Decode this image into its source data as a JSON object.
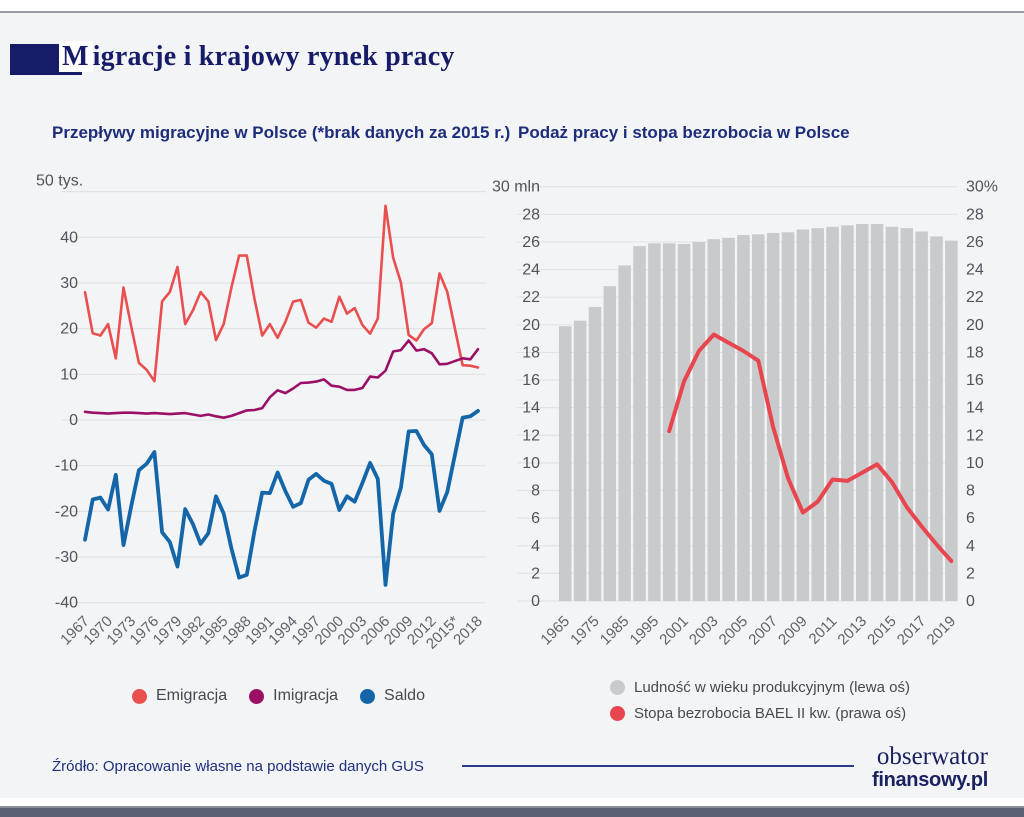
{
  "page": {
    "title": "Migracje i krajowy rynek pracy",
    "source": "Źródło: Opracowanie własne na podstawie danych GUS",
    "logo_line1": "obserwator",
    "logo_line2": "finansowy.pl",
    "background": "#f3f4f6",
    "accent_navy": "#171c69"
  },
  "chart_data": [
    {
      "type": "line",
      "title": "Przepływy migracyjne w Polsce (*brak danych za 2015 r.)",
      "unit": "tys.",
      "y_ticks": [
        "50 tys.",
        "40",
        "30",
        "20",
        "10",
        "0",
        "-10",
        "-20",
        "-30",
        "-40"
      ],
      "ylim": [
        -40,
        50
      ],
      "grid": true,
      "legend_position": "bottom",
      "x_tick_labels": [
        "1967",
        "1970",
        "1973",
        "1976",
        "1979",
        "1982",
        "1985",
        "1988",
        "1991",
        "1994",
        "1997",
        "2000",
        "2003",
        "2006",
        "2009",
        "2012",
        "2015*",
        "2018"
      ],
      "x_start_year": 1967,
      "x_end_year": 2018,
      "years": [
        1967,
        1968,
        1969,
        1970,
        1971,
        1972,
        1973,
        1974,
        1975,
        1976,
        1977,
        1978,
        1979,
        1980,
        1981,
        1982,
        1983,
        1984,
        1985,
        1986,
        1987,
        1988,
        1989,
        1990,
        1991,
        1992,
        1993,
        1994,
        1995,
        1996,
        1997,
        1998,
        1999,
        2000,
        2001,
        2002,
        2003,
        2004,
        2005,
        2006,
        2007,
        2008,
        2009,
        2010,
        2011,
        2012,
        2013,
        2014,
        2015,
        2016,
        2017,
        2018
      ],
      "series": [
        {
          "name": "Emigracja",
          "color": "#e94f4f",
          "values": [
            28,
            19,
            18.5,
            21,
            13.5,
            29,
            20.5,
            12.5,
            11,
            8.5,
            26,
            28,
            33.5,
            21,
            24,
            28,
            26,
            17.5,
            21,
            29,
            36,
            36,
            26.5,
            18.5,
            21,
            18,
            21.5,
            25.9,
            26.3,
            21.3,
            20.2,
            22.2,
            21.5,
            27,
            23.3,
            24.5,
            20.8,
            18.9,
            22.2,
            46.9,
            35.5,
            30.1,
            18.6,
            17.4,
            19.9,
            21.2,
            32.1,
            28.1,
            null,
            12,
            11.9,
            11.5
          ]
        },
        {
          "name": "Imigracja",
          "color": "#9a1066",
          "values": [
            1.8,
            1.6,
            1.5,
            1.4,
            1.5,
            1.6,
            1.6,
            1.5,
            1.4,
            1.5,
            1.4,
            1.3,
            1.4,
            1.5,
            1.2,
            0.9,
            1.2,
            0.8,
            0.5,
            0.9,
            1.5,
            2.1,
            2.2,
            2.6,
            5,
            6.5,
            5.9,
            6.9,
            8.1,
            8.2,
            8.4,
            8.9,
            7.5,
            7.3,
            6.6,
            6.6,
            7,
            9.5,
            9.3,
            10.8,
            15,
            15.3,
            17.4,
            15.2,
            15.5,
            14.6,
            12.2,
            12.3,
            null,
            13.5,
            13.3,
            15.5
          ]
        },
        {
          "name": "Saldo",
          "color": "#1466a8",
          "values": [
            -26.2,
            -17.4,
            -17,
            -19.6,
            -12,
            -27.4,
            -18.9,
            -11,
            -9.6,
            -7,
            -24.6,
            -26.7,
            -32.1,
            -19.5,
            -22.8,
            -27.1,
            -24.8,
            -16.7,
            -20.5,
            -28.1,
            -34.5,
            -33.9,
            -24.3,
            -15.9,
            -16,
            -11.5,
            -15.6,
            -19,
            -18.2,
            -13.1,
            -11.8,
            -13.3,
            -14,
            -19.7,
            -16.7,
            -17.9,
            -13.8,
            -9.4,
            -12.9,
            -36.1,
            -20.5,
            -14.8,
            -2.5,
            -2.4,
            -5.5,
            -7.5,
            -19.9,
            -15.8,
            null,
            0.5,
            0.8,
            2
          ]
        }
      ]
    },
    {
      "type": "bar+line",
      "title": "Podaż pracy i stopa bezrobocia w Polsce",
      "left_axis_top_label": "30 mln",
      "right_axis_top_label": "30%",
      "left_ticks": [
        "30 mln",
        "28",
        "26",
        "24",
        "22",
        "20",
        "18",
        "16",
        "14",
        "12",
        "10",
        "8",
        "6",
        "4",
        "2",
        "0"
      ],
      "right_ticks": [
        "30%",
        "28",
        "26",
        "24",
        "22",
        "20",
        "18",
        "16",
        "14",
        "12",
        "10",
        "8",
        "6",
        "4",
        "2",
        "0"
      ],
      "ylim": [
        0,
        30
      ],
      "grid": true,
      "legend_position": "bottom",
      "categories": [
        1965,
        1970,
        1975,
        1980,
        1985,
        1990,
        1995,
        2000,
        2001,
        2002,
        2003,
        2004,
        2005,
        2006,
        2007,
        2008,
        2009,
        2010,
        2011,
        2012,
        2013,
        2014,
        2015,
        2016,
        2017,
        2018,
        2019
      ],
      "x_tick_labels": [
        "1965",
        "1975",
        "1985",
        "1995",
        "2001",
        "2003",
        "2005",
        "2007",
        "2009",
        "2011",
        "2013",
        "2015",
        "2017",
        "2019"
      ],
      "bars": {
        "name": "Ludność w wieku produkcyjnym (lewa oś)",
        "color": "#c9cacc",
        "axis": "left (mln)",
        "values": [
          19.9,
          20.3,
          21.3,
          22.8,
          24.3,
          25.7,
          25.9,
          25.9,
          25.85,
          26,
          26.2,
          26.3,
          26.5,
          26.55,
          26.65,
          26.7,
          26.9,
          27,
          27.1,
          27.2,
          27.3,
          27.3,
          27.1,
          27,
          26.75,
          26.4,
          26.1
        ]
      },
      "line": {
        "name": "Stopa bezrobocia BAEL II kw. (prawa oś)",
        "color": "#e8464e",
        "axis": "right (%)",
        "start_year": 2000,
        "values": [
          12.3,
          15.9,
          18.1,
          19.3,
          18.7,
          18.1,
          17.4,
          12.6,
          8.9,
          6.4,
          7.2,
          8.8,
          8.7,
          9.3,
          9.9,
          8.6,
          6.8,
          5.4,
          4.1,
          2.9
        ]
      }
    }
  ],
  "legend_left": [
    {
      "label": "Emigracja",
      "color": "#e94f4f"
    },
    {
      "label": "Imigracja",
      "color": "#9a1066"
    },
    {
      "label": "Saldo",
      "color": "#1466a8"
    }
  ],
  "legend_right": [
    {
      "label": "Ludność w wieku produkcyjnym (lewa oś)",
      "color": "#c9cacc"
    },
    {
      "label": "Stopa bezrobocia BAEL II kw. (prawa oś)",
      "color": "#e8464e"
    }
  ]
}
